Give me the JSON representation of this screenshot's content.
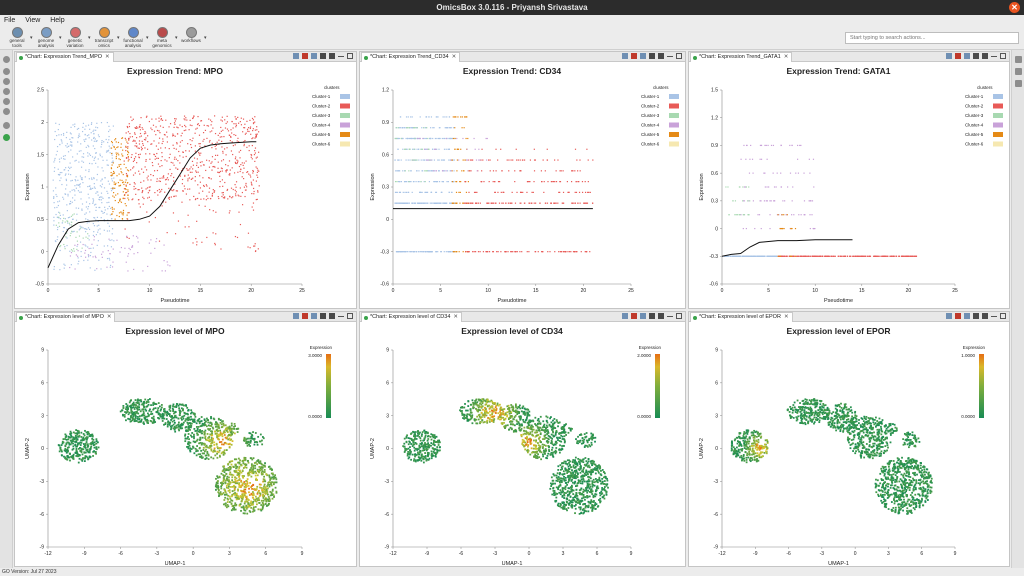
{
  "window": {
    "title": "OmicsBox 3.0.116 - Priyansh Srivastava",
    "close": "✕"
  },
  "menu": [
    "File",
    "View",
    "Help"
  ],
  "toolbar": [
    {
      "label": "general\ntools",
      "color": "#6d8fb0"
    },
    {
      "label": "genome\nanalysis",
      "color": "#7b9dc4"
    },
    {
      "label": "genetic\nvariation",
      "color": "#d46b6b"
    },
    {
      "label": "transcript\nomics",
      "color": "#e2933a"
    },
    {
      "label": "functional\nanalysis",
      "color": "#5f87c9"
    },
    {
      "label": "meta\ngenomics",
      "color": "#b94a4a"
    },
    {
      "label": "workflows",
      "color": "#9b9b9b"
    }
  ],
  "search": {
    "placeholder": "Start typing to search actions..."
  },
  "status": {
    "text": "GO Version: Jul 27 2023"
  },
  "clusters_legend_title": "clusters",
  "clusters": [
    {
      "name": "Cluster-1",
      "color": "#a9c4e6"
    },
    {
      "name": "Cluster-2",
      "color": "#e85a57"
    },
    {
      "name": "Cluster-3",
      "color": "#a8d9b1"
    },
    {
      "name": "Cluster-4",
      "color": "#c9a2d9"
    },
    {
      "name": "Cluster-5",
      "color": "#e58a16"
    },
    {
      "name": "Cluster-6",
      "color": "#f6e8b1"
    }
  ],
  "panels": {
    "trend_mpo": {
      "tab": "*Chart: Expression Trend_MPO"
    },
    "trend_cd34": {
      "tab": "*Chart: Expression Trend_CD34"
    },
    "trend_gata1": {
      "tab": "*Chart: Expression Trend_GATA1"
    },
    "umap_mpo": {
      "tab": "*Chart: Expression level of MPO"
    },
    "umap_cd34": {
      "tab": "*Chart: Expression level of CD34"
    },
    "umap_epor": {
      "tab": "*Chart: Expression level of EPOR"
    }
  },
  "chart_data": [
    {
      "id": "trend_mpo",
      "type": "scatter",
      "title": "Expression Trend: MPO",
      "xlabel": "Pseudotime",
      "ylabel": "Expression",
      "xlim": [
        0,
        25
      ],
      "ylim": [
        -0.5,
        2.5
      ],
      "xticks": [
        "0",
        "5",
        "10",
        "15",
        "20",
        "25"
      ],
      "yticks": [
        "-0.5",
        "0",
        "0.5",
        "1",
        "1.5",
        "2",
        "2.5"
      ],
      "legend": "top-right",
      "trend_x": [
        0,
        1,
        2,
        3,
        4,
        5,
        6,
        7,
        8,
        9,
        10,
        11,
        12,
        13,
        14,
        15,
        16,
        17,
        18,
        19,
        20,
        20.5
      ],
      "trend_y": [
        -0.25,
        0.1,
        0.35,
        0.45,
        0.47,
        0.48,
        0.48,
        0.48,
        0.48,
        0.5,
        0.55,
        0.7,
        0.95,
        1.2,
        1.45,
        1.6,
        1.65,
        1.67,
        1.68,
        1.69,
        1.7,
        1.7
      ],
      "clouds": [
        {
          "cluster": 0,
          "x": [
            0.5,
            6.5
          ],
          "y": [
            0.3,
            2.0
          ],
          "n": 420
        },
        {
          "cluster": 0,
          "x": [
            0.5,
            6.5
          ],
          "y": [
            -0.3,
            0.3
          ],
          "n": 60
        },
        {
          "cluster": 4,
          "x": [
            6.2,
            8.0
          ],
          "y": [
            0.5,
            1.8
          ],
          "n": 140
        },
        {
          "cluster": 1,
          "x": [
            7.5,
            20.8
          ],
          "y": [
            0.8,
            2.1
          ],
          "n": 700
        },
        {
          "cluster": 1,
          "x": [
            7.5,
            20.8
          ],
          "y": [
            0.0,
            0.8
          ],
          "n": 60
        },
        {
          "cluster": 3,
          "x": [
            2,
            12
          ],
          "y": [
            -0.3,
            0.25
          ],
          "n": 70
        },
        {
          "cluster": 2,
          "x": [
            0.5,
            4
          ],
          "y": [
            0.0,
            0.6
          ],
          "n": 40
        }
      ]
    },
    {
      "id": "trend_cd34",
      "type": "scatter",
      "title": "Expression Trend: CD34",
      "xlabel": "Pseudotime",
      "ylabel": "Expression",
      "xlim": [
        0,
        25
      ],
      "ylim": [
        -0.6,
        1.2
      ],
      "xticks": [
        "0",
        "5",
        "10",
        "15",
        "20",
        "25"
      ],
      "yticks": [
        "-0.6",
        "-0.3",
        "0",
        "0.3",
        "0.6",
        "0.9",
        "1.2"
      ],
      "legend": "top-right",
      "trend_x": [
        0,
        21
      ],
      "trend_y": [
        0.1,
        0.1
      ],
      "bands": [
        0.95,
        0.85,
        0.75,
        0.65,
        0.55,
        0.45,
        0.35,
        0.25,
        0.15,
        -0.3
      ],
      "clouds": [
        {
          "cluster": 0,
          "x": [
            0.2,
            6.5
          ],
          "y": [
            -0.3,
            0.95
          ],
          "n": 500
        },
        {
          "cluster": 4,
          "x": [
            6.2,
            8.0
          ],
          "y": [
            -0.3,
            1.05
          ],
          "n": 80
        },
        {
          "cluster": 1,
          "x": [
            7.5,
            21
          ],
          "y": [
            -0.3,
            0.65
          ],
          "n": 300
        },
        {
          "cluster": 3,
          "x": [
            2,
            10
          ],
          "y": [
            0.4,
            0.8
          ],
          "n": 40
        },
        {
          "cluster": 2,
          "x": [
            0.2,
            4
          ],
          "y": [
            0.3,
            0.9
          ],
          "n": 40
        }
      ]
    },
    {
      "id": "trend_gata1",
      "type": "scatter",
      "title": "Expression Trend: GATA1",
      "xlabel": "Pseudotime",
      "ylabel": "Expression",
      "xlim": [
        0,
        25
      ],
      "ylim": [
        -0.6,
        1.5
      ],
      "xticks": [
        "0",
        "5",
        "10",
        "15",
        "20",
        "25"
      ],
      "yticks": [
        "-0.6",
        "-0.3",
        "0",
        "0.3",
        "0.6",
        "0.9",
        "1.2",
        "1.5"
      ],
      "legend": "top-right",
      "trend_x": [
        0,
        1,
        2,
        3,
        4,
        5,
        6,
        8,
        10,
        12,
        14
      ],
      "trend_y": [
        -0.3,
        -0.28,
        -0.27,
        -0.2,
        -0.15,
        -0.14,
        -0.13,
        -0.13,
        -0.12,
        -0.12,
        -0.12
      ],
      "bands": [
        0.9,
        0.75,
        0.6,
        0.45,
        0.3,
        0.15,
        0.0,
        -0.3
      ],
      "clouds": [
        {
          "cluster": 0,
          "x": [
            0.2,
            6.5
          ],
          "y": [
            -0.3,
            -0.3
          ],
          "n": 200
        },
        {
          "cluster": 3,
          "x": [
            2,
            10
          ],
          "y": [
            -0.05,
            1.0
          ],
          "n": 110
        },
        {
          "cluster": 1,
          "x": [
            6,
            21
          ],
          "y": [
            -0.3,
            -0.3
          ],
          "n": 250
        },
        {
          "cluster": 2,
          "x": [
            0.2,
            3
          ],
          "y": [
            0.1,
            0.5
          ],
          "n": 25
        },
        {
          "cluster": 4,
          "x": [
            6,
            8
          ],
          "y": [
            -0.3,
            0.2
          ],
          "n": 20
        }
      ]
    },
    {
      "id": "umap_mpo",
      "type": "scatter",
      "title": "Expression level of MPO",
      "xlabel": "UMAP-1",
      "ylabel": "UMAP-2",
      "xlim": [
        -12,
        9
      ],
      "ylim": [
        -9,
        9
      ],
      "xticks": [
        "-12",
        "-9",
        "-6",
        "-3",
        "0",
        "3",
        "6",
        "9"
      ],
      "yticks": [
        "-9",
        "-6",
        "-3",
        "0",
        "3",
        "6",
        "9"
      ],
      "colorbar": {
        "title": "Expression",
        "max": "3.0000",
        "min": "0.0000"
      },
      "hot": [
        {
          "cx": 4.5,
          "cy": -3.5,
          "r": 3.5
        },
        {
          "cx": 2.5,
          "cy": 0.5,
          "r": 2.5
        }
      ]
    },
    {
      "id": "umap_cd34",
      "type": "scatter",
      "title": "Expression level of CD34",
      "xlabel": "UMAP-1",
      "ylabel": "UMAP-2",
      "xlim": [
        -12,
        9
      ],
      "ylim": [
        -9,
        9
      ],
      "xticks": [
        "-12",
        "-9",
        "-6",
        "-3",
        "0",
        "3",
        "6",
        "9"
      ],
      "yticks": [
        "-9",
        "-6",
        "-3",
        "0",
        "3",
        "6",
        "9"
      ],
      "colorbar": {
        "title": "Expression",
        "max": "2.0000",
        "min": "0.0000"
      },
      "hot": [
        {
          "cx": -3,
          "cy": 3.3,
          "r": 2.5
        },
        {
          "cx": 0,
          "cy": 0.5,
          "r": 2.0
        }
      ]
    },
    {
      "id": "umap_epor",
      "type": "scatter",
      "title": "Expression level of EPOR",
      "xlabel": "UMAP-1",
      "ylabel": "UMAP-2",
      "xlim": [
        -12,
        9
      ],
      "ylim": [
        -9,
        9
      ],
      "xticks": [
        "-12",
        "-9",
        "-6",
        "-3",
        "0",
        "3",
        "6",
        "9"
      ],
      "yticks": [
        "-9",
        "-6",
        "-3",
        "0",
        "3",
        "6",
        "9"
      ],
      "colorbar": {
        "title": "Expression",
        "max": "1.0000",
        "min": "0.0000"
      },
      "hot": [
        {
          "cx": -8.5,
          "cy": 0,
          "r": 1.6
        }
      ]
    }
  ]
}
